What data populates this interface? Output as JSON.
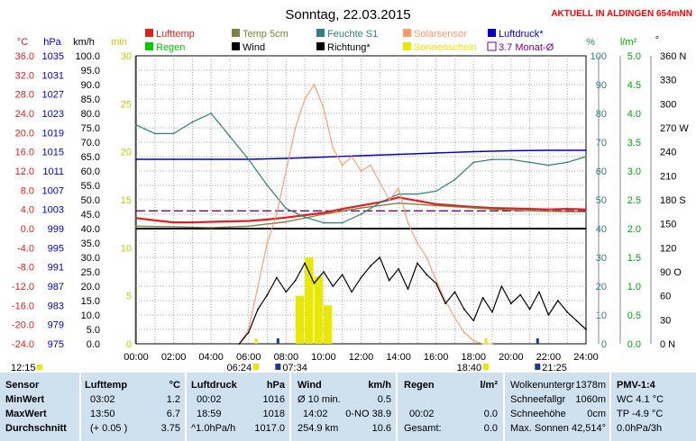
{
  "title": "Sonntag, 22.03.2015",
  "station_note": "AKTUELL IN ALDINGEN 654mNN",
  "colors": {
    "temp": "#e02020",
    "pressure": "#0000cc",
    "wind": "#000000",
    "humidity": "#2f7f7f",
    "sun": "#e8e800",
    "solar": "#ff9966",
    "soil": "#808040",
    "rain": "#00cc00",
    "avg": "#800080"
  },
  "legend": [
    {
      "label": "Lufttemp",
      "color": "#e02020",
      "symbol": "box"
    },
    {
      "label": "Temp 5cm",
      "color": "#808040",
      "symbol": "box"
    },
    {
      "label": "Feuchte S1",
      "color": "#2f7f7f",
      "symbol": "box"
    },
    {
      "label": "Solarsensor",
      "color": "#ff9966",
      "symbol": "box"
    },
    {
      "label": "Luftdruck*",
      "color": "#0000cc",
      "symbol": "box"
    },
    {
      "label": "Regen",
      "color": "#00cc00",
      "symbol": "box"
    },
    {
      "label": "Wind",
      "color": "#000000",
      "symbol": "box"
    },
    {
      "label": "Richtung*",
      "color": "#000000",
      "symbol": "box"
    },
    {
      "label": "Sonnenschein",
      "color": "#e8e800",
      "symbol": "box"
    },
    {
      "label": "3.7 Monat-Ø",
      "color": "#800080",
      "symbol": "outline"
    }
  ],
  "axis_headers": {
    "celsius": "°C",
    "hpa": "hPa",
    "kmh": "km/h",
    "min": "min",
    "percent": "%",
    "lm2": "l/m²",
    "degree": "°"
  },
  "ticks": {
    "celsius": [
      "36.0",
      "32.0",
      "28.0",
      "24.0",
      "20.0",
      "16.0",
      "12.0",
      "8.0",
      "4.0",
      "0.0",
      "-4.0",
      "-8.0",
      "-12.0",
      "-16.0",
      "-20.0",
      "-24.0"
    ],
    "hpa": [
      "1035",
      "1031",
      "1027",
      "1023",
      "1019",
      "1015",
      "1011",
      "1007",
      "1003",
      "999",
      "995",
      "991",
      "987",
      "983",
      "979",
      "975"
    ],
    "kmh": [
      "100.0",
      "95.0",
      "90.0",
      "85.0",
      "80.0",
      "75.0",
      "70.0",
      "65.0",
      "60.0",
      "55.0",
      "50.0",
      "45.0",
      "40.0",
      "35.0",
      "30.0",
      "25.0",
      "20.0",
      "15.0",
      "10.0",
      "5.0",
      "0.0"
    ],
    "min": [
      "30",
      "25",
      "20",
      "15",
      "10",
      "5",
      "0"
    ],
    "percent": [
      "100",
      "90",
      "80",
      "70",
      "60",
      "50",
      "40",
      "30",
      "20",
      "10",
      "0"
    ],
    "lm2": [
      "5.0",
      "4.5",
      "4.0",
      "3.5",
      "3.0",
      "2.5",
      "2.0",
      "1.5",
      "1.0",
      "0.5",
      "0.0"
    ],
    "degree": [
      "360 N",
      "330",
      "300",
      "270 W",
      "240",
      "210",
      "180 S",
      "150",
      "120",
      "90 O",
      "60",
      "30",
      "0 N"
    ]
  },
  "x_ticks": [
    "00:00",
    "02:00",
    "04:00",
    "06:00",
    "08:00",
    "10:00",
    "12:00",
    "14:00",
    "16:00",
    "18:00",
    "20:00",
    "22:00",
    "24:00"
  ],
  "sun_events": {
    "left_time": "12:15",
    "sunrise": "06:24",
    "sunrise2": "07:34",
    "sunset": "18:40",
    "sunset2": "21:25"
  },
  "chart_data": {
    "type": "line",
    "x_unit": "hour",
    "x_range": [
      0,
      24
    ],
    "series": [
      {
        "name": "Lufttemp",
        "unit": "°C",
        "x": [
          0,
          1,
          2,
          3,
          4,
          5,
          6,
          7,
          8,
          9,
          10,
          11,
          12,
          13,
          14,
          15,
          16,
          17,
          18,
          19,
          20,
          21,
          22,
          23,
          24
        ],
        "y": [
          2.2,
          1.7,
          1.3,
          1.3,
          1.4,
          1.5,
          1.6,
          1.9,
          2.3,
          2.8,
          3.3,
          4.1,
          4.8,
          5.5,
          6.5,
          5.8,
          5.1,
          4.8,
          4.5,
          4.3,
          4.2,
          4.1,
          4.0,
          4.1,
          4.0
        ]
      },
      {
        "name": "Temp 5cm",
        "unit": "°C",
        "x": [
          0,
          2,
          4,
          6,
          8,
          10,
          12,
          14,
          16,
          18,
          20,
          22,
          24
        ],
        "y": [
          0.5,
          0.4,
          0.2,
          0.5,
          1.4,
          3.0,
          4.3,
          5.3,
          4.8,
          4.3,
          3.8,
          3.6,
          3.5
        ]
      },
      {
        "name": "Luftdruck*",
        "unit": "hPa",
        "x": [
          0,
          2,
          4,
          6,
          8,
          10,
          12,
          14,
          16,
          18,
          20,
          22,
          24
        ],
        "y": [
          1016,
          1016,
          1016,
          1016,
          1016.2,
          1016.5,
          1016.8,
          1017.1,
          1017.4,
          1017.7,
          1017.9,
          1018.0,
          1018.0
        ]
      },
      {
        "name": "Feuchte S1",
        "unit": "%",
        "x": [
          0,
          1,
          2,
          3,
          4,
          5,
          6,
          7,
          8,
          9,
          10,
          11,
          12,
          13,
          14,
          15,
          16,
          17,
          18,
          19,
          20,
          21,
          22,
          23,
          24
        ],
        "y": [
          76,
          73,
          73,
          77,
          80,
          72,
          64,
          55,
          47,
          44,
          42,
          42,
          45,
          49,
          52,
          52,
          53,
          57,
          63,
          64,
          64,
          63,
          62,
          63,
          65
        ]
      },
      {
        "name": "Solarsensor",
        "unit": "km/h",
        "x": [
          5.5,
          6,
          6.5,
          7,
          7.5,
          8,
          8.5,
          9,
          9.5,
          10,
          10.5,
          11,
          11.5,
          12,
          12.5,
          13,
          13.5,
          14,
          14.5,
          15,
          15.5,
          16,
          16.5,
          17,
          17.5,
          18,
          18.5,
          19
        ],
        "y": [
          0,
          5,
          20,
          35,
          45,
          60,
          75,
          85,
          90,
          82,
          68,
          62,
          65,
          60,
          62,
          56,
          50,
          54,
          42,
          35,
          30,
          22,
          15,
          9,
          4,
          1,
          0,
          0
        ]
      },
      {
        "name": "Wind",
        "unit": "km/h",
        "x": [
          5.5,
          6,
          6.5,
          7,
          7.5,
          8,
          8.5,
          9,
          9.5,
          10,
          10.5,
          11,
          11.5,
          12,
          12.5,
          13,
          13.5,
          14,
          14.5,
          15,
          15.5,
          16,
          16.5,
          17,
          17.5,
          18,
          18.5,
          19,
          19.5,
          20,
          20.5,
          21,
          21.5,
          22,
          22.5,
          23,
          23.5,
          24
        ],
        "y": [
          0,
          4,
          12,
          17,
          23,
          18,
          22,
          28,
          21,
          25,
          20,
          24,
          18,
          23,
          27,
          30,
          22,
          26,
          19,
          28,
          24,
          21,
          14,
          18,
          12,
          8,
          16,
          11,
          20,
          14,
          17,
          12,
          18,
          10,
          15,
          11,
          8,
          5
        ]
      },
      {
        "name": "Sonnenschein",
        "unit": "min",
        "x": [
          8.5,
          9,
          9.5,
          10
        ],
        "y": [
          5,
          9,
          7,
          4
        ]
      }
    ],
    "reference_lines": [
      {
        "name": "3.7 Monat-Ø",
        "unit": "°C",
        "value": 3.7
      }
    ],
    "ylim": {
      "celsius": [
        -24,
        36
      ],
      "hpa": [
        975,
        1039
      ],
      "kmh": [
        0,
        100
      ],
      "min": [
        0,
        30
      ],
      "percent": [
        0,
        100
      ],
      "lm2": [
        0,
        5
      ],
      "degree": [
        0,
        360
      ]
    },
    "title": "Sonntag, 22.03.2015"
  },
  "table": {
    "sensor": {
      "header": "Sensor",
      "rows": [
        "MinWert",
        "MaxWert",
        "Durchschnitt"
      ]
    },
    "lufttemp": {
      "header": "Lufttemp",
      "unit": "°C",
      "rows": [
        [
          "03:02",
          "1.2"
        ],
        [
          "13:50",
          "6.7"
        ],
        [
          "(+ 0.05 )",
          "3.75"
        ]
      ]
    },
    "luftdruck": {
      "header": "Luftdruck",
      "unit": "hPa",
      "rows": [
        [
          "00:02",
          "1016"
        ],
        [
          "18:59",
          "1018"
        ],
        [
          "^1.0hPa/h",
          "1017.0"
        ]
      ]
    },
    "wind": {
      "header": "Wind",
      "unit": "km/h",
      "rows": [
        [
          "Ø 10 min.",
          "0.5"
        ],
        [
          "14:02",
          "0-NO 38.9"
        ],
        [
          "254.9 km",
          "10.6"
        ]
      ]
    },
    "regen": {
      "header": "Regen",
      "unit": "l/m²",
      "rows": [
        [
          "",
          ""
        ],
        [
          "00:02",
          "0.0"
        ],
        [
          "Gesamt:",
          "0.0"
        ]
      ]
    },
    "info": {
      "rows": [
        [
          "Wolkenuntergr",
          "1378m"
        ],
        [
          "Schneefallgr",
          "1060m"
        ],
        [
          "Schneehöhe",
          "0cm"
        ],
        [
          "Max. Sonnen",
          "42,514°"
        ]
      ]
    },
    "pmv": {
      "header": "PMV-1:4",
      "rows": [
        "WC 4.1 °C",
        "TP -4.9 °C",
        "0.0hPa/3h"
      ]
    }
  }
}
